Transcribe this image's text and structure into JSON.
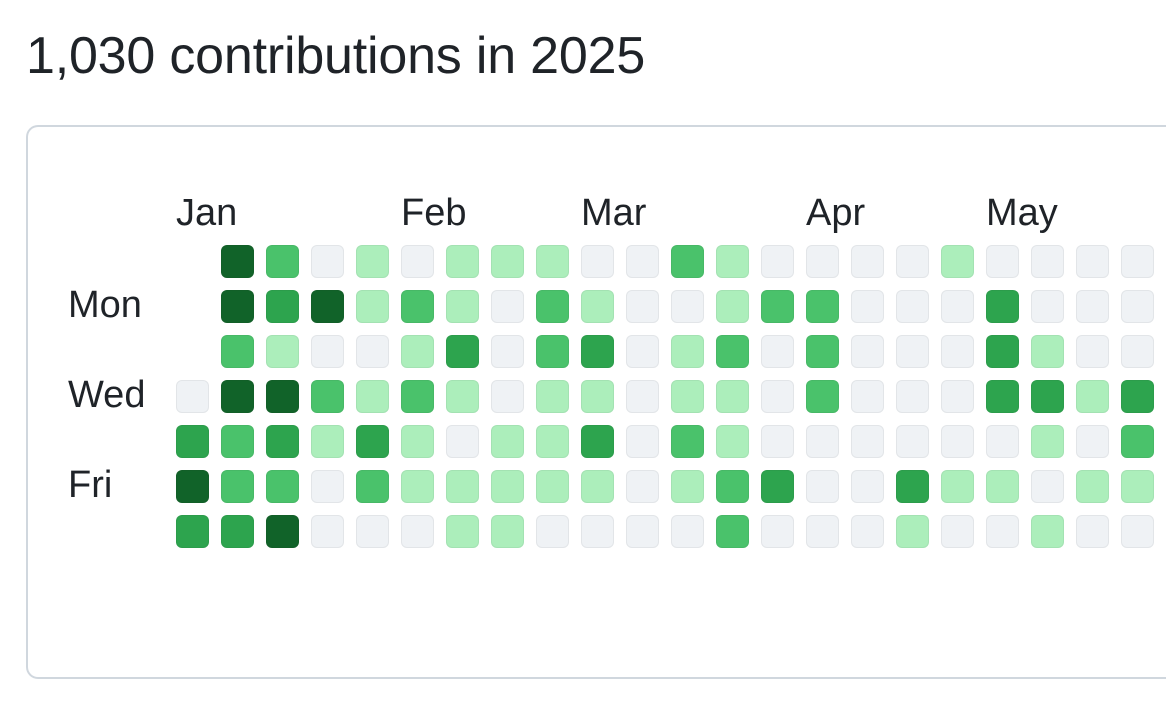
{
  "header": {
    "title": "1,030 contributions in 2025"
  },
  "months": [
    "Jan",
    "Feb",
    "Mar",
    "Apr",
    "May"
  ],
  "weekday_labels": [
    "Mon",
    "Wed",
    "Fri"
  ],
  "colors": {
    "0": "#eff2f5",
    "1": "#aceebb",
    "2": "#4ac26b",
    "3": "#2da44e",
    "4": "#116329"
  },
  "contribution_levels": [
    [
      -1,
      4,
      2,
      0,
      1,
      0,
      1,
      1,
      1,
      0,
      0,
      2,
      1,
      0,
      0,
      0,
      0,
      1,
      0,
      0,
      0,
      0
    ],
    [
      -1,
      4,
      3,
      4,
      1,
      2,
      1,
      0,
      2,
      1,
      0,
      0,
      1,
      2,
      2,
      0,
      0,
      0,
      3,
      0,
      0,
      0
    ],
    [
      -1,
      2,
      1,
      0,
      0,
      1,
      3,
      0,
      2,
      3,
      0,
      1,
      2,
      0,
      2,
      0,
      0,
      0,
      3,
      1,
      0,
      0
    ],
    [
      0,
      4,
      4,
      2,
      1,
      2,
      1,
      0,
      1,
      1,
      0,
      1,
      1,
      0,
      2,
      0,
      0,
      0,
      3,
      3,
      1,
      3
    ],
    [
      3,
      2,
      3,
      1,
      3,
      1,
      0,
      1,
      1,
      3,
      0,
      2,
      1,
      0,
      0,
      0,
      0,
      0,
      0,
      1,
      0,
      2
    ],
    [
      4,
      2,
      2,
      0,
      2,
      1,
      1,
      1,
      1,
      1,
      0,
      1,
      2,
      3,
      0,
      0,
      3,
      1,
      1,
      0,
      1,
      1
    ],
    [
      3,
      3,
      4,
      0,
      0,
      0,
      1,
      1,
      0,
      0,
      0,
      0,
      2,
      0,
      0,
      0,
      1,
      0,
      0,
      1,
      0,
      0
    ]
  ]
}
